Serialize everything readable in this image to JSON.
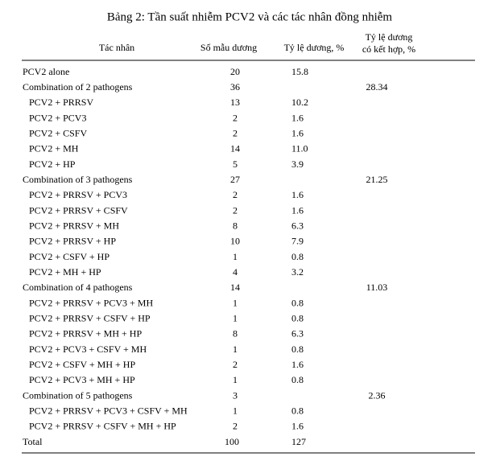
{
  "title": "Bảng 2: Tần suất nhiễm PCV2 và các tác nhân đồng nhiễm",
  "header": [
    "Tác nhân",
    "Số mẫu dương",
    "Tỷ lệ dương, %",
    [
      "Tỷ lệ dương",
      "có kết hợp, %"
    ]
  ],
  "groups": [
    {
      "name": "PCV2 alone",
      "count": "20",
      "percent": "15.8",
      "combined": null,
      "items": []
    },
    {
      "name": "Combination of 2 pathogens",
      "count": "36",
      "percent": null,
      "combined": "28.34",
      "items": [
        [
          "PCV2 + PRRSV",
          "13",
          "10.2"
        ],
        [
          "PCV2 + PCV3",
          "2",
          "1.6"
        ],
        [
          "PCV2 + CSFV",
          "2",
          "1.6"
        ],
        [
          "PCV2 + MH",
          "14",
          "11.0"
        ],
        [
          "PCV2 + HP",
          "5",
          "3.9"
        ]
      ]
    },
    {
      "name": "Combination of 3 pathogens",
      "count": "27",
      "percent": null,
      "combined": "21.25",
      "items": [
        [
          "PCV2 + PRRSV + PCV3",
          "2",
          "1.6"
        ],
        [
          "PCV2 + PRRSV + CSFV",
          "2",
          "1.6"
        ],
        [
          "PCV2 + PRRSV + MH",
          "8",
          "6.3"
        ],
        [
          "PCV2 + PRRSV + HP",
          "10",
          "7.9"
        ],
        [
          "PCV2 + CSFV + HP",
          "1",
          "0.8"
        ],
        [
          "PCV2 + MH + HP",
          "4",
          "3.2"
        ]
      ]
    },
    {
      "name": "Combination of 4 pathogens",
      "count": "14",
      "percent": null,
      "combined": "11.03",
      "items": [
        [
          "PCV2 + PRRSV + PCV3 + MH",
          "1",
          "0.8"
        ],
        [
          "PCV2 + PRRSV + CSFV + HP",
          "1",
          "0.8"
        ],
        [
          "PCV2 + PRRSV + MH + HP",
          "8",
          "6.3"
        ],
        [
          "PCV2 + PCV3 + CSFV + MH",
          "1",
          "0.8"
        ],
        [
          "PCV2 + CSFV + MH + HP",
          "2",
          "1.6"
        ],
        [
          "PCV2 + PCV3 + MH + HP",
          "1",
          "0.8"
        ]
      ]
    },
    {
      "name": "Combination of 5 pathogens",
      "count": "3",
      "percent": null,
      "combined": "2.36",
      "items": [
        [
          "PCV2 + PRRSV + PCV3 + CSFV + MH",
          "1",
          "0.8"
        ],
        [
          "PCV2 + PRRSV + CSFV + MH + HP",
          "2",
          "1.6"
        ]
      ]
    }
  ],
  "total": [
    "Total",
    "100",
    "127"
  ]
}
